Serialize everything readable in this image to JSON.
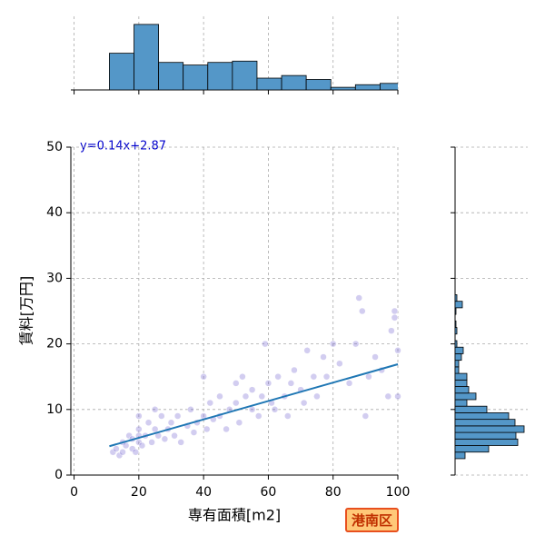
{
  "badge": "港南区",
  "chart_data": [
    {
      "type": "scatter",
      "xlabel": "専有面積[m2]",
      "ylabel": "賃料[万円]",
      "annotation": "y=0.14x+2.87",
      "xlim": [
        -1,
        100
      ],
      "ylim": [
        0,
        50
      ],
      "xticks": [
        0,
        20,
        40,
        60,
        80,
        100
      ],
      "yticks": [
        0,
        10,
        20,
        30,
        40,
        50
      ],
      "grid": true,
      "color": "#6a5acd",
      "line_color": "#1f77b4",
      "regression": {
        "x": [
          10.9,
          100
        ],
        "y": [
          4.4,
          16.9
        ]
      },
      "series": [
        {
          "name": "points",
          "x": [
            12,
            13,
            14,
            15,
            15,
            16,
            17,
            18,
            18,
            19,
            20,
            20,
            20,
            20,
            21,
            22,
            23,
            24,
            25,
            25,
            26,
            27,
            28,
            29,
            30,
            31,
            32,
            33,
            35,
            36,
            37,
            38,
            40,
            40,
            41,
            42,
            43,
            45,
            45,
            47,
            48,
            50,
            50,
            51,
            52,
            53,
            55,
            55,
            57,
            58,
            59,
            60,
            61,
            62,
            63,
            65,
            66,
            67,
            68,
            70,
            71,
            72,
            74,
            75,
            77,
            78,
            80,
            82,
            85,
            87,
            88,
            89,
            90,
            91,
            93,
            95,
            97,
            99,
            99,
            100,
            100,
            98
          ],
          "values": [
            3.5,
            4,
            3,
            5,
            3.5,
            4.5,
            6,
            4,
            5.5,
            3.5,
            9,
            7,
            5,
            6,
            4.5,
            6,
            8,
            5,
            10,
            7,
            6,
            9,
            5.5,
            7,
            8,
            6,
            9,
            5,
            7.5,
            10,
            6.5,
            8,
            15,
            9,
            7,
            11,
            8.5,
            12,
            9,
            7,
            10,
            14,
            11,
            8,
            15,
            12,
            10,
            13,
            9,
            12,
            20,
            14,
            11,
            10,
            15,
            12,
            9,
            14,
            16,
            13,
            11,
            19,
            15,
            12,
            18,
            15,
            20,
            17,
            14,
            20,
            27,
            25,
            9,
            15,
            18,
            16,
            12,
            25,
            24,
            19,
            12,
            22
          ]
        }
      ]
    },
    {
      "type": "histogram",
      "orientation": "vertical",
      "color": "#5497c8",
      "ylim": [
        0,
        52
      ],
      "bins": [
        10.9,
        18.5,
        26.1,
        33.7,
        41.3,
        48.9,
        56.5,
        64.1,
        71.7,
        79.3,
        86.9,
        94.5,
        102.1
      ],
      "counts": [
        28,
        50,
        21,
        19,
        21,
        22,
        9,
        11,
        8,
        2,
        4,
        5
      ]
    },
    {
      "type": "histogram",
      "orientation": "horizontal",
      "color": "#5497c8",
      "xlim": [
        0,
        80
      ],
      "bins": [
        2.5,
        3.5,
        4.5,
        5.5,
        6.5,
        7.5,
        8.5,
        9.5,
        10.5,
        11.5,
        12.5,
        13.5,
        14.5,
        15.5,
        16.5,
        17.5,
        18.5,
        19.5,
        20.5,
        21.5,
        22.5,
        23.5,
        24.5,
        25.5,
        26.5,
        27.5
      ],
      "counts": [
        11,
        37,
        69,
        67,
        76,
        66,
        59,
        35,
        13,
        23,
        15,
        13,
        13,
        4,
        4,
        7,
        9,
        2,
        0,
        2,
        1,
        0,
        1,
        8,
        2
      ]
    }
  ]
}
